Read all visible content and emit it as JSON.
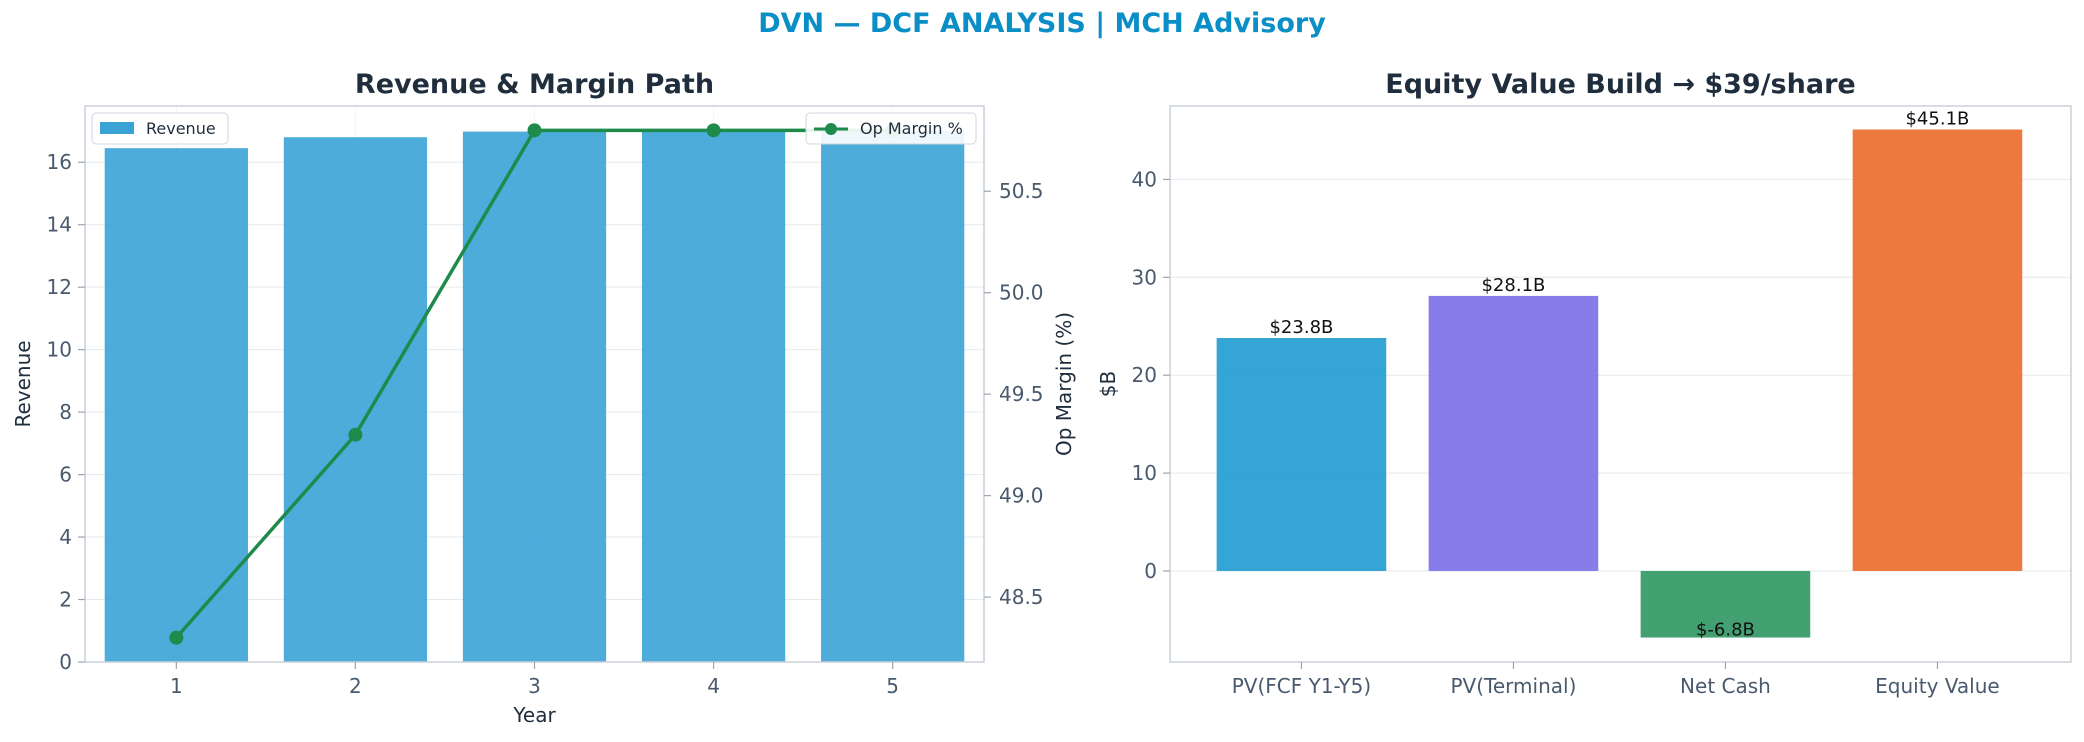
{
  "suptitle": "DVN — DCF ANALYSIS | MCH Advisory",
  "chart_data": [
    {
      "type": "bar",
      "title": "Revenue & Margin Path",
      "xlabel": "Year",
      "ylabel": "Revenue",
      "y2label": "Op Margin (%)",
      "categories": [
        "1",
        "2",
        "3",
        "4",
        "5"
      ],
      "ylim": [
        0,
        17.8
      ],
      "yticks": [
        0,
        2,
        4,
        6,
        8,
        10,
        12,
        14,
        16
      ],
      "y2lim": [
        48.18,
        50.92
      ],
      "y2ticks": [
        48.5,
        49.0,
        49.5,
        50.0,
        50.5
      ],
      "series": [
        {
          "name": "Revenue",
          "kind": "bar",
          "axis": "left",
          "color": "#3aa3d6",
          "values": [
            16.45,
            16.8,
            16.98,
            17.0,
            17.0
          ]
        },
        {
          "name": "Op Margin %",
          "kind": "line",
          "axis": "right",
          "color": "#1e8a4c",
          "values": [
            48.3,
            49.3,
            50.8,
            50.8,
            50.8
          ]
        }
      ],
      "legend": [
        "top-left",
        "top-right"
      ],
      "grid": true
    },
    {
      "type": "bar",
      "title": "Equity Value Build → $39/share",
      "xlabel": "",
      "ylabel": "$B",
      "categories": [
        "PV(FCF Y1-Y5)",
        "PV(Terminal)",
        "Net Cash",
        "Equity Value"
      ],
      "values": [
        23.8,
        28.1,
        -6.8,
        45.1
      ],
      "labels": [
        "$23.8B",
        "$28.1B",
        "$-6.8B",
        "$45.1B"
      ],
      "colors": [
        "#1f9bd1",
        "#7b6ee8",
        "#2f9660",
        "#ec6a2a"
      ],
      "ylim": [
        -9.3,
        47.5
      ],
      "yticks": [
        0,
        10,
        20,
        30,
        40
      ],
      "grid": true
    }
  ]
}
